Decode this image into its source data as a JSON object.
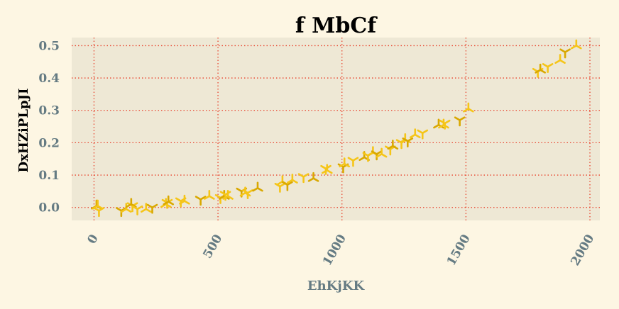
{
  "chart_data": {
    "type": "scatter",
    "title": "f MbCf",
    "xlabel": "EhKjKK",
    "ylabel": "DxHZiPLpJI",
    "xlim": [
      -90,
      2040
    ],
    "ylim": [
      -0.04,
      0.525
    ],
    "xticks": [
      0,
      500,
      1000,
      1500,
      2000
    ],
    "xtick_labels": [
      "0",
      "500",
      "1000",
      "1500",
      "2000"
    ],
    "yticks": [
      0.0,
      0.1,
      0.2,
      0.3,
      0.4,
      0.5
    ],
    "ytick_labels": [
      "0.0",
      "0.1",
      "0.2",
      "0.3",
      "0.4",
      "0.5"
    ],
    "grid": true,
    "legend": false,
    "colors": {
      "background": "#fdf6e3",
      "plot_background": "#eee8d5",
      "grid": "#e8442f",
      "marker_light": "#f5c518",
      "marker_dark": "#d9a800",
      "tick_text": "#657b83",
      "xlabel_text": "#657b83",
      "ylabel_text": "#000000",
      "title_text": "#000000"
    },
    "series": [
      {
        "marker": "tri",
        "points": [
          [
            10,
            0.005
          ],
          [
            20,
            -0.01
          ],
          [
            15,
            0.005
          ],
          [
            110,
            -0.01
          ],
          [
            130,
            -0.005
          ],
          [
            155,
            0.005
          ],
          [
            150,
            0.01
          ],
          [
            175,
            -0.005
          ],
          [
            210,
            -0.005
          ],
          [
            235,
            0.0
          ],
          [
            290,
            0.01
          ],
          [
            295,
            0.015
          ],
          [
            300,
            0.018
          ],
          [
            350,
            0.02
          ],
          [
            365,
            0.02
          ],
          [
            430,
            0.025
          ],
          [
            465,
            0.035
          ],
          [
            510,
            0.03
          ],
          [
            525,
            0.035
          ],
          [
            530,
            0.04
          ],
          [
            540,
            0.035
          ],
          [
            595,
            0.05
          ],
          [
            610,
            0.045
          ],
          [
            620,
            0.045
          ],
          [
            660,
            0.06
          ],
          [
            750,
            0.065
          ],
          [
            760,
            0.08
          ],
          [
            780,
            0.07
          ],
          [
            800,
            0.085
          ],
          [
            845,
            0.095
          ],
          [
            885,
            0.09
          ],
          [
            935,
            0.12
          ],
          [
            940,
            0.115
          ],
          [
            1005,
            0.125
          ],
          [
            1010,
            0.135
          ],
          [
            1045,
            0.145
          ],
          [
            1090,
            0.155
          ],
          [
            1105,
            0.16
          ],
          [
            1125,
            0.17
          ],
          [
            1140,
            0.165
          ],
          [
            1160,
            0.165
          ],
          [
            1195,
            0.18
          ],
          [
            1205,
            0.19
          ],
          [
            1240,
            0.2
          ],
          [
            1255,
            0.21
          ],
          [
            1265,
            0.205
          ],
          [
            1295,
            0.225
          ],
          [
            1325,
            0.23
          ],
          [
            1390,
            0.255
          ],
          [
            1415,
            0.26
          ],
          [
            1410,
            0.255
          ],
          [
            1475,
            0.27
          ],
          [
            1510,
            0.305
          ],
          [
            1790,
            0.42
          ],
          [
            1800,
            0.425
          ],
          [
            1830,
            0.435
          ],
          [
            1880,
            0.455
          ],
          [
            1900,
            0.48
          ],
          [
            1945,
            0.5
          ]
        ]
      }
    ]
  }
}
